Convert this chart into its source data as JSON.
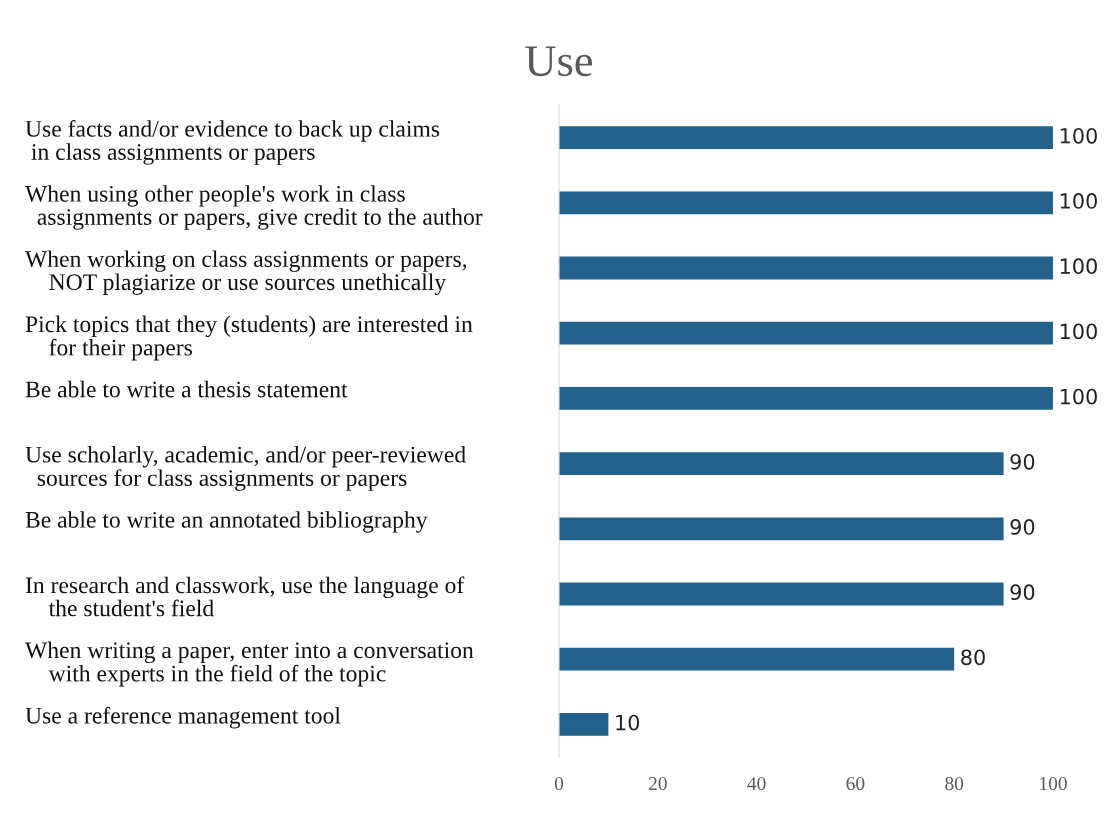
{
  "chart_data": {
    "type": "bar",
    "orientation": "horizontal",
    "title": "Use",
    "categories": [
      "Use facts and/or evidence to back up claims\n in class assignments or papers",
      "When using other people's work in class\n  assignments or papers, give credit to the author",
      "When working on class assignments or papers,\n    NOT plagiarize or use sources unethically",
      "Pick topics that they (students) are interested in\n    for their papers",
      "Be able to write a thesis statement",
      "Use scholarly, academic, and/or peer-reviewed\n  sources for class assignments or papers",
      "Be able to write an annotated bibliography",
      "In research and classwork, use the language of\n    the student's field",
      "When writing a paper, enter into a conversation\n    with experts in the field of the topic",
      "Use a reference management tool"
    ],
    "values": [
      100,
      100,
      100,
      100,
      100,
      90,
      90,
      90,
      80,
      10
    ],
    "color": "#24628c",
    "xlim": [
      0,
      100
    ],
    "xticks": [
      0,
      20,
      40,
      60,
      80,
      100
    ],
    "data_labels": true,
    "grid": false,
    "legend": false
  }
}
